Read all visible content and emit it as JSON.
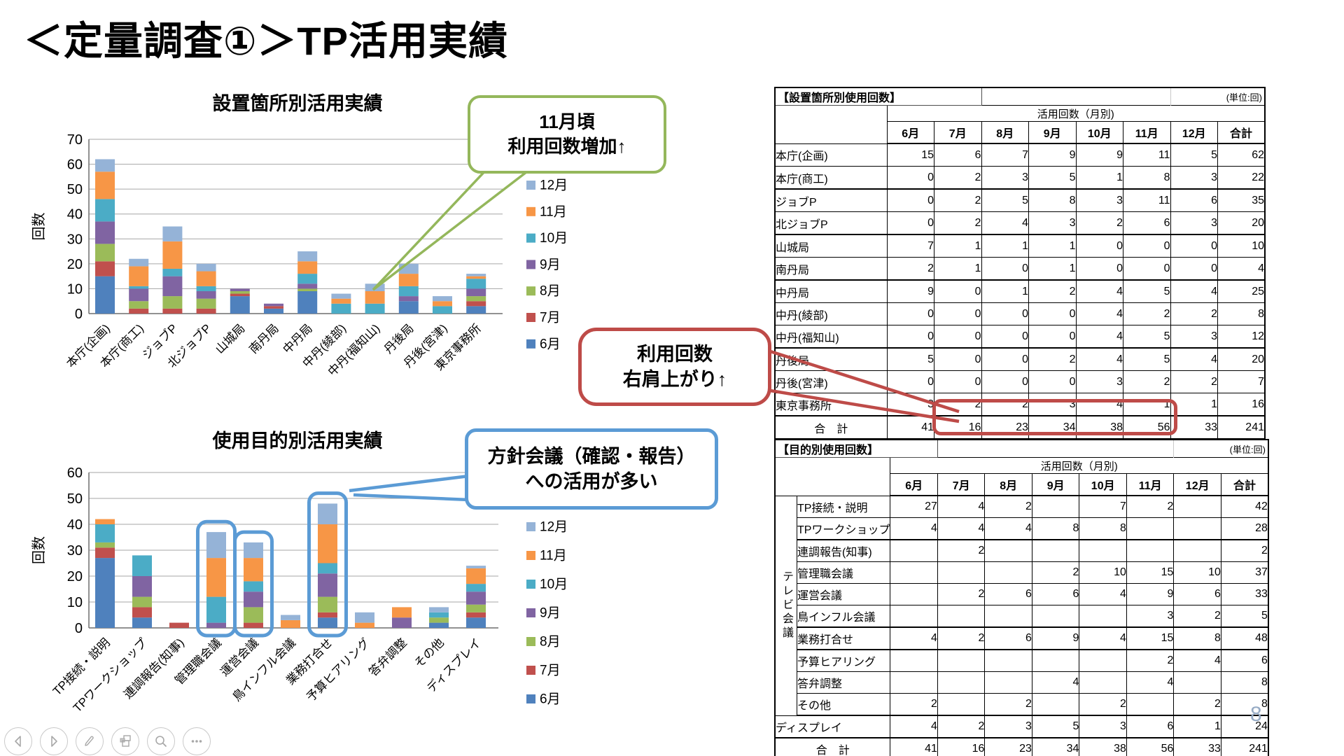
{
  "slide": {
    "title": "＜定量調査①＞TP活用実績",
    "page_number": "8"
  },
  "months": [
    "6月",
    "7月",
    "8月",
    "9月",
    "10月",
    "11月",
    "12月"
  ],
  "legend_order": [
    "12月",
    "11月",
    "10月",
    "9月",
    "8月",
    "7月",
    "6月"
  ],
  "month_colors": {
    "6月": "#4F81BD",
    "7月": "#C0504D",
    "8月": "#9BBB59",
    "9月": "#8064A2",
    "10月": "#4BACC6",
    "11月": "#F79646",
    "12月": "#95B3D7"
  },
  "accent_colors": {
    "green": "#94b75b",
    "red": "#be4b48",
    "blue": "#5b9bd5"
  },
  "chart_data": [
    {
      "type": "bar",
      "stacked": true,
      "title": "設置箇所別活用実績",
      "ylabel": "回数",
      "xlabel": "",
      "ylim": [
        0,
        70
      ],
      "ytick": 10,
      "grid": true,
      "legend_position": "right",
      "categories": [
        "本庁(企画)",
        "本庁(商工)",
        "ジョブP",
        "北ジョブP",
        "山城局",
        "南丹局",
        "中丹局",
        "中丹(綾部)",
        "中丹(福知山)",
        "丹後局",
        "丹後(宮津)",
        "東京事務所"
      ],
      "series": [
        {
          "name": "6月",
          "values": [
            15,
            0,
            0,
            0,
            7,
            2,
            9,
            0,
            0,
            5,
            0,
            3
          ]
        },
        {
          "name": "7月",
          "values": [
            6,
            2,
            2,
            2,
            1,
            1,
            0,
            0,
            0,
            0,
            0,
            2
          ]
        },
        {
          "name": "8月",
          "values": [
            7,
            3,
            5,
            4,
            1,
            0,
            1,
            0,
            0,
            0,
            0,
            2
          ]
        },
        {
          "name": "9月",
          "values": [
            9,
            5,
            8,
            3,
            1,
            1,
            2,
            0,
            0,
            2,
            0,
            3
          ]
        },
        {
          "name": "10月",
          "values": [
            9,
            1,
            3,
            2,
            0,
            0,
            4,
            4,
            4,
            4,
            3,
            4
          ]
        },
        {
          "name": "11月",
          "values": [
            11,
            8,
            11,
            6,
            0,
            0,
            5,
            2,
            5,
            5,
            2,
            1
          ]
        },
        {
          "name": "12月",
          "values": [
            5,
            3,
            6,
            3,
            0,
            0,
            4,
            2,
            3,
            4,
            2,
            1
          ]
        }
      ]
    },
    {
      "type": "bar",
      "stacked": true,
      "title": "使用目的別活用実績",
      "ylabel": "回数",
      "xlabel": "",
      "ylim": [
        0,
        60
      ],
      "ytick": 10,
      "grid": true,
      "legend_position": "right",
      "categories": [
        "TP接続・説明",
        "TPワークショップ",
        "連調報告(知事)",
        "管理職会議",
        "運営会議",
        "鳥インフル会議",
        "業務打合せ",
        "予算ヒアリング",
        "答弁調整",
        "その他",
        "ディスプレイ"
      ],
      "series": [
        {
          "name": "6月",
          "values": [
            27,
            4,
            0,
            0,
            0,
            0,
            4,
            0,
            0,
            2,
            4
          ]
        },
        {
          "name": "7月",
          "values": [
            4,
            4,
            2,
            0,
            2,
            0,
            2,
            0,
            0,
            0,
            2
          ]
        },
        {
          "name": "8月",
          "values": [
            2,
            4,
            0,
            0,
            6,
            0,
            6,
            0,
            0,
            2,
            3
          ]
        },
        {
          "name": "9月",
          "values": [
            0,
            8,
            0,
            2,
            6,
            0,
            9,
            0,
            4,
            0,
            5
          ]
        },
        {
          "name": "10月",
          "values": [
            7,
            8,
            0,
            10,
            4,
            0,
            4,
            0,
            0,
            2,
            3
          ]
        },
        {
          "name": "11月",
          "values": [
            2,
            0,
            0,
            15,
            9,
            3,
            15,
            2,
            4,
            0,
            6
          ]
        },
        {
          "name": "12月",
          "values": [
            0,
            0,
            0,
            10,
            6,
            2,
            8,
            4,
            0,
            2,
            1
          ]
        }
      ],
      "highlighted_category_indices": [
        3,
        4,
        6
      ]
    }
  ],
  "callouts": {
    "green": {
      "line1": "11月頃",
      "line2": "利用回数増加↑"
    },
    "red": {
      "line1": "利用回数",
      "line2": "右肩上がり↑"
    },
    "blue": {
      "line1": "方針会議（確認・報告）",
      "line2": "への活用が多い"
    }
  },
  "tables": [
    {
      "title": "【設置箇所別使用回数】",
      "unit": "(単位:回)",
      "band": "活用回数（月別)",
      "col_headers": [
        "6月",
        "7月",
        "8月",
        "9月",
        "10月",
        "11月",
        "12月",
        "合計"
      ],
      "rows": [
        {
          "label": "本庁(企画)",
          "values": [
            15,
            6,
            7,
            9,
            9,
            11,
            5,
            62
          ]
        },
        {
          "label": "本庁(商工)",
          "values": [
            0,
            2,
            3,
            5,
            1,
            8,
            3,
            22
          ]
        },
        {
          "label": "ジョブP",
          "values": [
            0,
            2,
            5,
            8,
            3,
            11,
            6,
            35
          ]
        },
        {
          "label": "北ジョブP",
          "values": [
            0,
            2,
            4,
            3,
            2,
            6,
            3,
            20
          ]
        },
        {
          "label": "山城局",
          "values": [
            7,
            1,
            1,
            1,
            0,
            0,
            0,
            10
          ]
        },
        {
          "label": "南丹局",
          "values": [
            2,
            1,
            0,
            1,
            0,
            0,
            0,
            4
          ]
        },
        {
          "label": "中丹局",
          "values": [
            9,
            0,
            1,
            2,
            4,
            5,
            4,
            25
          ]
        },
        {
          "label": "中丹(綾部)",
          "values": [
            0,
            0,
            0,
            0,
            4,
            2,
            2,
            8
          ]
        },
        {
          "label": "中丹(福知山)",
          "values": [
            0,
            0,
            0,
            0,
            4,
            5,
            3,
            12
          ]
        },
        {
          "label": "丹後局",
          "values": [
            5,
            0,
            0,
            2,
            4,
            5,
            4,
            20
          ]
        },
        {
          "label": "丹後(宮津)",
          "values": [
            0,
            0,
            0,
            0,
            3,
            2,
            2,
            7
          ]
        },
        {
          "label": "東京事務所",
          "values": [
            3,
            2,
            2,
            3,
            4,
            1,
            1,
            16
          ]
        }
      ],
      "total": {
        "label": "合　計",
        "values": [
          41,
          16,
          23,
          34,
          38,
          56,
          33,
          241
        ]
      }
    },
    {
      "title": "【目的別使用回数】",
      "unit": "(単位:回)",
      "band": "活用回数（月別)",
      "group_label": "テレビ会議",
      "col_headers": [
        "6月",
        "7月",
        "8月",
        "9月",
        "10月",
        "11月",
        "12月",
        "合計"
      ],
      "rows": [
        {
          "label": "TP接続・説明",
          "values": [
            27,
            4,
            2,
            "",
            7,
            2,
            "",
            42
          ]
        },
        {
          "label": "TPワークショップ",
          "values": [
            4,
            4,
            4,
            8,
            8,
            "",
            "",
            28
          ]
        },
        {
          "label": "連調報告(知事)",
          "values": [
            "",
            2,
            "",
            "",
            "",
            "",
            "",
            2
          ]
        },
        {
          "label": "管理職会議",
          "values": [
            "",
            "",
            "",
            2,
            10,
            15,
            10,
            37
          ]
        },
        {
          "label": "運営会議",
          "values": [
            "",
            2,
            6,
            6,
            4,
            9,
            6,
            33
          ]
        },
        {
          "label": "鳥インフル会議",
          "values": [
            "",
            "",
            "",
            "",
            "",
            3,
            2,
            5
          ]
        },
        {
          "label": "業務打合せ",
          "values": [
            4,
            2,
            6,
            9,
            4,
            15,
            8,
            48
          ]
        },
        {
          "label": "予算ヒアリング",
          "values": [
            "",
            "",
            "",
            "",
            "",
            2,
            4,
            6
          ]
        },
        {
          "label": "答弁調整",
          "values": [
            "",
            "",
            "",
            4,
            "",
            4,
            "",
            8
          ]
        },
        {
          "label": "その他",
          "values": [
            2,
            "",
            2,
            "",
            2,
            "",
            2,
            8
          ]
        },
        {
          "label": "ディスプレイ",
          "wide": true,
          "values": [
            4,
            2,
            3,
            5,
            3,
            6,
            1,
            24
          ]
        }
      ],
      "total": {
        "label": "合　計",
        "values": [
          41,
          16,
          23,
          34,
          38,
          56,
          33,
          241
        ]
      }
    }
  ],
  "controls": [
    {
      "name": "previous-slide"
    },
    {
      "name": "next-slide"
    },
    {
      "name": "pen"
    },
    {
      "name": "slide-navigator"
    },
    {
      "name": "zoom"
    },
    {
      "name": "more-options"
    }
  ]
}
